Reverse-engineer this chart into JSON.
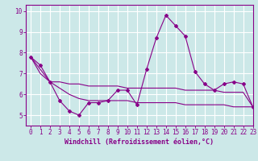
{
  "xlabel": "Windchill (Refroidissement éolien,°C)",
  "ylabel": "",
  "xlim": [
    -0.5,
    23
  ],
  "ylim": [
    4.5,
    10.3
  ],
  "xticks": [
    0,
    1,
    2,
    3,
    4,
    5,
    6,
    7,
    8,
    9,
    10,
    11,
    12,
    13,
    14,
    15,
    16,
    17,
    18,
    19,
    20,
    21,
    22,
    23
  ],
  "yticks": [
    5,
    6,
    7,
    8,
    9,
    10
  ],
  "background_color": "#cce8e8",
  "grid_color": "#ffffff",
  "line_color": "#880088",
  "series1_x": [
    0,
    1,
    2,
    3,
    4,
    5,
    6,
    7,
    8,
    9,
    10,
    11,
    12,
    13,
    14,
    15,
    16,
    17,
    18,
    19,
    20,
    21,
    22,
    23
  ],
  "series1_y": [
    7.8,
    7.4,
    6.6,
    5.7,
    5.2,
    5.0,
    5.6,
    5.6,
    5.7,
    6.2,
    6.2,
    5.5,
    7.2,
    8.7,
    9.8,
    9.3,
    8.8,
    7.1,
    6.5,
    6.2,
    6.5,
    6.6,
    6.5,
    5.4
  ],
  "series2_x": [
    0,
    1,
    2,
    3,
    4,
    5,
    6,
    7,
    8,
    9,
    10,
    11,
    12,
    13,
    14,
    15,
    16,
    17,
    18,
    19,
    20,
    21,
    22,
    23
  ],
  "series2_y": [
    7.8,
    7.2,
    6.6,
    6.6,
    6.5,
    6.5,
    6.4,
    6.4,
    6.4,
    6.4,
    6.3,
    6.3,
    6.3,
    6.3,
    6.3,
    6.3,
    6.2,
    6.2,
    6.2,
    6.2,
    6.1,
    6.1,
    6.1,
    5.4
  ],
  "series3_x": [
    0,
    1,
    2,
    3,
    4,
    5,
    6,
    7,
    8,
    9,
    10,
    11,
    12,
    13,
    14,
    15,
    16,
    17,
    18,
    19,
    20,
    21,
    22,
    23
  ],
  "series3_y": [
    7.8,
    7.0,
    6.6,
    6.3,
    6.0,
    5.8,
    5.7,
    5.7,
    5.7,
    5.7,
    5.7,
    5.6,
    5.6,
    5.6,
    5.6,
    5.6,
    5.5,
    5.5,
    5.5,
    5.5,
    5.5,
    5.4,
    5.4,
    5.4
  ],
  "tick_fontsize": 5.5,
  "xlabel_fontsize": 6.0
}
